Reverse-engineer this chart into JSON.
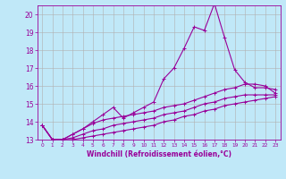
{
  "xlabel": "Windchill (Refroidissement éolien,°C)",
  "x_values": [
    0,
    1,
    2,
    3,
    4,
    5,
    6,
    7,
    8,
    9,
    10,
    11,
    12,
    13,
    14,
    15,
    16,
    17,
    18,
    19,
    20,
    21,
    22,
    23
  ],
  "line1": [
    13.8,
    13.0,
    13.0,
    13.3,
    13.6,
    14.0,
    14.4,
    14.8,
    14.2,
    14.5,
    14.8,
    15.1,
    16.4,
    17.0,
    18.1,
    19.3,
    19.1,
    20.6,
    18.7,
    16.9,
    16.2,
    15.9,
    15.9,
    15.8
  ],
  "line2": [
    13.8,
    13.0,
    13.0,
    13.3,
    13.6,
    13.9,
    14.1,
    14.2,
    14.3,
    14.4,
    14.5,
    14.6,
    14.8,
    14.9,
    15.0,
    15.2,
    15.4,
    15.6,
    15.8,
    15.9,
    16.1,
    16.1,
    16.0,
    15.6
  ],
  "line3": [
    13.8,
    13.0,
    13.0,
    13.1,
    13.3,
    13.5,
    13.6,
    13.8,
    13.9,
    14.0,
    14.1,
    14.2,
    14.4,
    14.5,
    14.6,
    14.8,
    15.0,
    15.1,
    15.3,
    15.4,
    15.5,
    15.5,
    15.5,
    15.5
  ],
  "line4": [
    13.8,
    13.0,
    13.0,
    13.0,
    13.1,
    13.2,
    13.3,
    13.4,
    13.5,
    13.6,
    13.7,
    13.8,
    14.0,
    14.1,
    14.3,
    14.4,
    14.6,
    14.7,
    14.9,
    15.0,
    15.1,
    15.2,
    15.3,
    15.4
  ],
  "line_color": "#990099",
  "bg_color": "#c0e8f8",
  "grid_color": "#b0b0b0",
  "ylim": [
    13,
    20.5
  ],
  "xlim": [
    -0.5,
    23.5
  ],
  "yticks": [
    13,
    14,
    15,
    16,
    17,
    18,
    19,
    20
  ],
  "xticks": [
    0,
    1,
    2,
    3,
    4,
    5,
    6,
    7,
    8,
    9,
    10,
    11,
    12,
    13,
    14,
    15,
    16,
    17,
    18,
    19,
    20,
    21,
    22,
    23
  ],
  "tick_fontsize": 5,
  "xlabel_fontsize": 5.5,
  "marker_size": 2.5,
  "line_width": 0.8
}
